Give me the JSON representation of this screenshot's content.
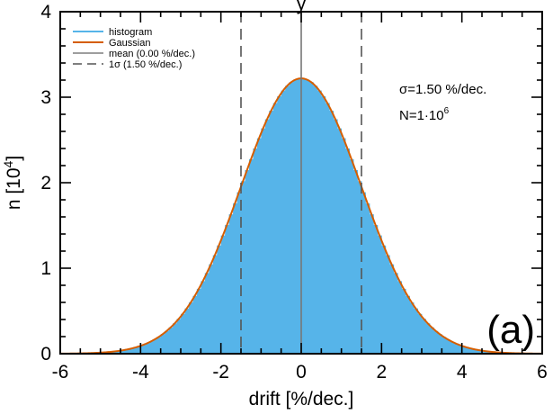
{
  "chart_data": {
    "type": "bar",
    "title_fragment": "y",
    "xlabel": "drift [%/dec.]",
    "ylabel": {
      "base": "n [10",
      "sup": "4",
      "close": "]"
    },
    "xlim": [
      -6,
      6
    ],
    "ylim": [
      0,
      4
    ],
    "xticks": [
      "-6",
      "-4",
      "-2",
      "0",
      "2",
      "4",
      "6"
    ],
    "yticks": [
      "0",
      "1",
      "2",
      "3",
      "4"
    ],
    "grid": false,
    "legend_position": "top-left",
    "histogram": {
      "name": "histogram",
      "color": "#56b4e9",
      "bin_width": 0.1,
      "x_min": -5.0,
      "x_max": 5.0,
      "sigma": 1.5,
      "peak": 3.22
    },
    "series": [
      {
        "name": "histogram",
        "color": "#56b4e9"
      },
      {
        "name": "Gaussian",
        "color": "#d55e00"
      },
      {
        "name": "mean (0.00 %/dec.)",
        "color": "#7f7f7f",
        "x": 0.0
      },
      {
        "name": "1σ  (1.50 %/dec.)",
        "color": "#555555",
        "x": [
          -1.5,
          1.5
        ]
      }
    ],
    "annotations": {
      "sigma": "σ=1.50 %/dec.",
      "n_base": "N=1·10",
      "n_sup": "6",
      "panel": "(a)"
    }
  }
}
